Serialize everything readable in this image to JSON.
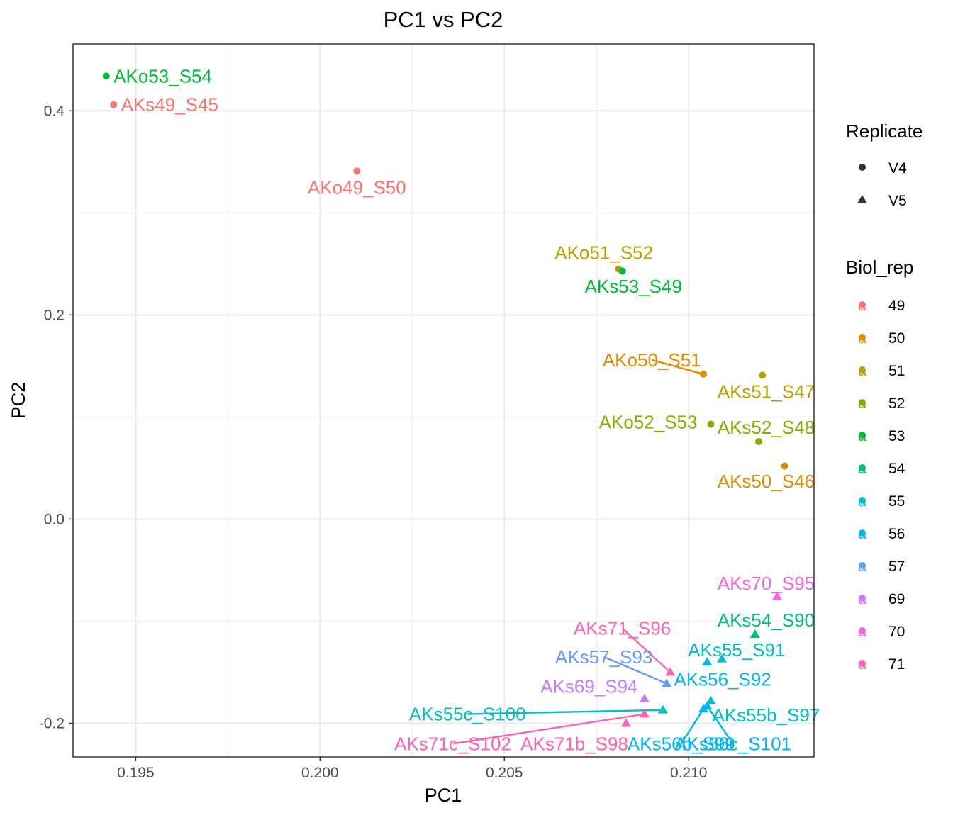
{
  "chart_data": {
    "type": "scatter",
    "title": "PC1 vs PC2",
    "xlabel": "PC1",
    "ylabel": "PC2",
    "xlim": [
      0.1933,
      0.2134
    ],
    "ylim": [
      -0.233,
      0.4655
    ],
    "x_ticks": [
      0.195,
      0.2,
      0.205,
      0.21
    ],
    "x_tick_labels": [
      "0.195",
      "0.200",
      "0.205",
      "0.210"
    ],
    "y_ticks": [
      -0.2,
      0.0,
      0.2,
      0.4
    ],
    "y_tick_labels": [
      "-0.2",
      "0.0",
      "0.2",
      "0.4"
    ],
    "grid": true,
    "legend_position": "right",
    "legends": {
      "shape": {
        "title": "Replicate",
        "items": [
          {
            "label": "V4",
            "shape": "circle"
          },
          {
            "label": "V5",
            "shape": "triangle"
          }
        ]
      },
      "color": {
        "title": "Biol_rep",
        "key_glyph": "a",
        "items": [
          {
            "label": "49",
            "color": "#F8766D"
          },
          {
            "label": "50",
            "color": "#DE8C00"
          },
          {
            "label": "51",
            "color": "#B79F00"
          },
          {
            "label": "52",
            "color": "#7CAE00"
          },
          {
            "label": "53",
            "color": "#00BA38"
          },
          {
            "label": "54",
            "color": "#00BF7D"
          },
          {
            "label": "55",
            "color": "#00BFC4"
          },
          {
            "label": "56",
            "color": "#00B4F0"
          },
          {
            "label": "57",
            "color": "#619CFF"
          },
          {
            "label": "69",
            "color": "#C77CFF"
          },
          {
            "label": "70",
            "color": "#F564E3"
          },
          {
            "label": "71",
            "color": "#FF64B0"
          }
        ]
      }
    },
    "points": [
      {
        "label": "AKo53_S54",
        "x": 0.1942,
        "y": 0.434,
        "replicate": "V4",
        "biol_rep": "53",
        "label_at": [
          0.1944,
          0.434
        ],
        "align": "start",
        "connector": false
      },
      {
        "label": "AKs49_S45",
        "x": 0.1944,
        "y": 0.406,
        "replicate": "V4",
        "biol_rep": "49",
        "label_at": [
          0.1946,
          0.406
        ],
        "align": "start",
        "connector": false
      },
      {
        "label": "AKo49_S50",
        "x": 0.201,
        "y": 0.341,
        "replicate": "V4",
        "biol_rep": "49",
        "label_at": [
          0.201,
          0.325
        ],
        "align": "middle",
        "connector": false
      },
      {
        "label": "AKo51_S52",
        "x": 0.2081,
        "y": 0.245,
        "replicate": "V4",
        "biol_rep": "51",
        "label_at": [
          0.2077,
          0.261
        ],
        "align": "middle",
        "connector": false
      },
      {
        "label": "AKs53_S49",
        "x": 0.2082,
        "y": 0.243,
        "replicate": "V4",
        "biol_rep": "53",
        "label_at": [
          0.2085,
          0.228
        ],
        "align": "middle",
        "connector": false
      },
      {
        "label": "AKo50_S51",
        "x": 0.2104,
        "y": 0.142,
        "replicate": "V4",
        "biol_rep": "50",
        "label_at": [
          0.209,
          0.156
        ],
        "align": "middle",
        "connector": true
      },
      {
        "label": "AKs51_S47",
        "x": 0.212,
        "y": 0.141,
        "replicate": "V4",
        "biol_rep": "51",
        "label_at": [
          0.2121,
          0.125
        ],
        "align": "middle",
        "connector": false
      },
      {
        "label": "AKo52_S53",
        "x": 0.2106,
        "y": 0.093,
        "replicate": "V4",
        "biol_rep": "52",
        "label_at": [
          0.2089,
          0.095
        ],
        "align": "middle",
        "connector": false
      },
      {
        "label": "AKs52_S48",
        "x": 0.2119,
        "y": 0.076,
        "replicate": "V4",
        "biol_rep": "52",
        "label_at": [
          0.2121,
          0.09
        ],
        "align": "middle",
        "connector": false
      },
      {
        "label": "AKs50_S46",
        "x": 0.2126,
        "y": 0.052,
        "replicate": "V4",
        "biol_rep": "50",
        "label_at": [
          0.2121,
          0.037
        ],
        "align": "middle",
        "connector": false
      },
      {
        "label": "AKs70_S95",
        "x": 0.2124,
        "y": -0.076,
        "replicate": "V5",
        "biol_rep": "70",
        "label_at": [
          0.2121,
          -0.063
        ],
        "align": "middle",
        "connector": false
      },
      {
        "label": "AKs54_S90",
        "x": 0.2118,
        "y": -0.113,
        "replicate": "V5",
        "biol_rep": "54",
        "label_at": [
          0.2121,
          -0.099
        ],
        "align": "middle",
        "connector": false
      },
      {
        "label": "AKs71_S96",
        "x": 0.2095,
        "y": -0.15,
        "replicate": "V5",
        "biol_rep": "71",
        "label_at": [
          0.2082,
          -0.107
        ],
        "align": "middle",
        "connector": true
      },
      {
        "label": "AKs55_S91",
        "x": 0.2109,
        "y": -0.137,
        "replicate": "V5",
        "biol_rep": "55",
        "label_at": [
          0.2113,
          -0.128
        ],
        "align": "middle",
        "connector": false
      },
      {
        "label": "AKs57_S93",
        "x": 0.2094,
        "y": -0.161,
        "replicate": "V5",
        "biol_rep": "57",
        "label_at": [
          0.2077,
          -0.135
        ],
        "align": "middle",
        "connector": true
      },
      {
        "label": "AKs56_S92",
        "x": 0.2105,
        "y": -0.14,
        "replicate": "V5",
        "biol_rep": "56",
        "label_at": [
          0.2096,
          -0.157
        ],
        "align": "start",
        "connector": false
      },
      {
        "label": "AKs69_S94",
        "x": 0.2088,
        "y": -0.176,
        "replicate": "V5",
        "biol_rep": "69",
        "label_at": [
          0.2073,
          -0.164
        ],
        "align": "middle",
        "connector": false
      },
      {
        "label": "AKs55c_S100",
        "x": 0.2093,
        "y": -0.187,
        "replicate": "V5",
        "biol_rep": "55",
        "label_at": [
          0.204,
          -0.191
        ],
        "align": "middle",
        "connector": true
      },
      {
        "label": "AKs55b_S97",
        "x": 0.2106,
        "y": -0.178,
        "replicate": "V5",
        "biol_rep": "55",
        "label_at": [
          0.2121,
          -0.192
        ],
        "align": "middle",
        "connector": false
      },
      {
        "label": "AKs71c_S102",
        "x": 0.2088,
        "y": -0.191,
        "replicate": "V5",
        "biol_rep": "71",
        "label_at": [
          0.2036,
          -0.22
        ],
        "align": "middle",
        "connector": true
      },
      {
        "label": "AKs71b_S98",
        "x": 0.2083,
        "y": -0.2,
        "replicate": "V5",
        "biol_rep": "71",
        "label_at": [
          0.2069,
          -0.22
        ],
        "align": "middle",
        "connector": false
      },
      {
        "label": "AKs56b_S99",
        "x": 0.2104,
        "y": -0.186,
        "replicate": "V5",
        "biol_rep": "56",
        "label_at": [
          0.2098,
          -0.22
        ],
        "align": "middle",
        "connector": true
      },
      {
        "label": "AKs56c_S101",
        "x": 0.2105,
        "y": -0.183,
        "replicate": "V5",
        "biol_rep": "56",
        "label_at": [
          0.2112,
          -0.22
        ],
        "align": "middle",
        "connector": true
      }
    ]
  }
}
